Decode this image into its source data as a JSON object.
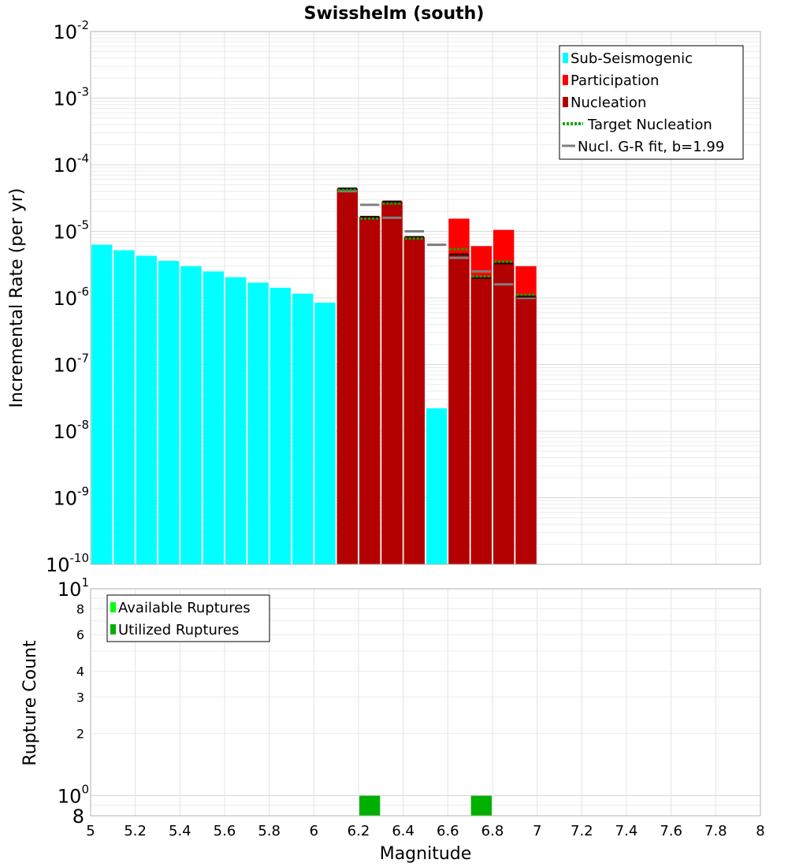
{
  "chart_data": [
    {
      "type": "bar",
      "title": "Swisshelm (south)",
      "xlabel": "",
      "ylabel": "Incremental Rate (per yr)",
      "yscale": "log",
      "ylim": [
        1e-10,
        0.01
      ],
      "xlim": [
        5,
        8
      ],
      "bin_width": 0.1,
      "grid": true,
      "legend_position": "top-right",
      "y_tick_labels": [
        {
          "base": "10",
          "exp": "-2"
        },
        {
          "base": "10",
          "exp": "-3"
        },
        {
          "base": "10",
          "exp": "-4"
        },
        {
          "base": "10",
          "exp": "-5"
        },
        {
          "base": "10",
          "exp": "-6"
        },
        {
          "base": "10",
          "exp": "-7"
        },
        {
          "base": "10",
          "exp": "-8"
        },
        {
          "base": "10",
          "exp": "-9"
        },
        {
          "base": "10",
          "exp": "-10"
        }
      ],
      "series": [
        {
          "name": "Sub-Seismogenic",
          "color": "#00ffff",
          "x": [
            5.05,
            5.15,
            5.25,
            5.35,
            5.45,
            5.55,
            5.65,
            5.75,
            5.85,
            5.95,
            6.05,
            6.55
          ],
          "values": [
            6.3e-06,
            5.2e-06,
            4.3e-06,
            3.6e-06,
            3e-06,
            2.5e-06,
            2.05e-06,
            1.7e-06,
            1.42e-06,
            1.16e-06,
            8.5e-07,
            2.2e-08
          ]
        },
        {
          "name": "Participation",
          "color": "#ff0000",
          "x": [
            6.15,
            6.25,
            6.35,
            6.45,
            6.65,
            6.75,
            6.85,
            6.95
          ],
          "values": [
            4.4e-05,
            1.65e-05,
            2.8e-05,
            8.2e-06,
            1.55e-05,
            6e-06,
            1.05e-05,
            3e-06
          ]
        },
        {
          "name": "Nucleation",
          "color": "#b30000",
          "x": [
            6.15,
            6.25,
            6.35,
            6.45,
            6.65,
            6.75,
            6.85,
            6.95
          ],
          "values": [
            4.4e-05,
            1.65e-05,
            2.8e-05,
            8.2e-06,
            4.5e-06,
            2e-06,
            3.3e-06,
            1.05e-06
          ]
        },
        {
          "name": "Target Nucleation",
          "color": "#00aa00",
          "x": [
            6.15,
            6.25,
            6.35,
            6.45,
            6.65,
            6.75,
            6.85,
            6.95
          ],
          "values": [
            4.2e-05,
            1.55e-05,
            2.6e-05,
            7.8e-06,
            5.4e-06,
            2.1e-06,
            3.5e-06,
            1.12e-06
          ]
        },
        {
          "name": "Nucl. G-R fit, b=1.99",
          "color": "#808080",
          "x": [
            6.15,
            6.25,
            6.35,
            6.45,
            6.55,
            6.65,
            6.75,
            6.85,
            6.95
          ],
          "values": [
            4e-05,
            2.5e-05,
            1.6e-05,
            1e-05,
            6.3e-06,
            4e-06,
            2.5e-06,
            1.6e-06,
            1e-06
          ]
        }
      ]
    },
    {
      "type": "bar",
      "title": "",
      "xlabel": "Magnitude",
      "ylabel": "Rupture Count",
      "yscale": "log",
      "ylim": [
        0.8,
        10
      ],
      "xlim": [
        5,
        8
      ],
      "bin_width": 0.1,
      "grid": true,
      "legend_position": "top-left",
      "x_ticks": [
        "5",
        "5.2",
        "5.4",
        "5.6",
        "5.8",
        "6",
        "6.2",
        "6.4",
        "6.6",
        "6.8",
        "7",
        "7.2",
        "7.4",
        "7.6",
        "7.8",
        "8"
      ],
      "y_tick_labels": [
        {
          "base": "10",
          "exp": "1",
          "value": 10
        },
        {
          "base": "8",
          "exp": "",
          "value": 8
        },
        {
          "base": "6",
          "exp": "",
          "value": 6
        },
        {
          "base": "4",
          "exp": "",
          "value": 4
        },
        {
          "base": "3",
          "exp": "",
          "value": 3
        },
        {
          "base": "2",
          "exp": "",
          "value": 2
        },
        {
          "base": "10",
          "exp": "0",
          "value": 1
        },
        {
          "base": "8",
          "exp": "",
          "value": 0.8
        }
      ],
      "series": [
        {
          "name": "Available Ruptures",
          "color": "#00ff00",
          "x": [
            6.25,
            6.75
          ],
          "values": [
            1,
            1
          ]
        },
        {
          "name": "Utilized Ruptures",
          "color": "#00b000",
          "x": [
            6.25,
            6.75
          ],
          "values": [
            1,
            1
          ]
        }
      ]
    }
  ]
}
